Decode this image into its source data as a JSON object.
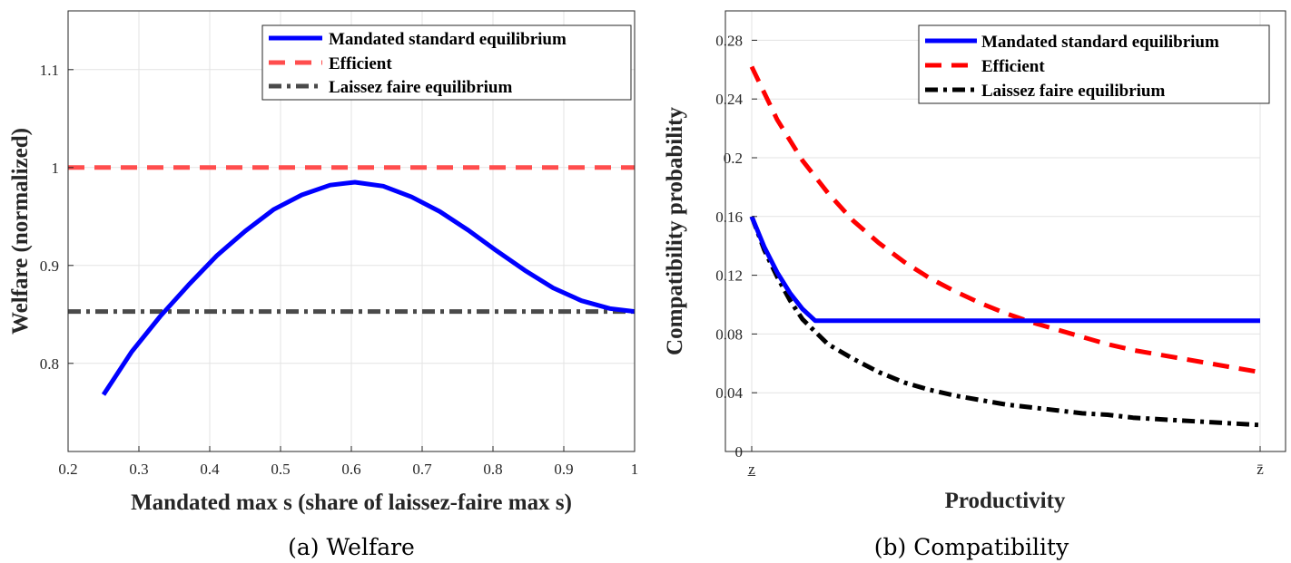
{
  "chart_data": [
    {
      "type": "line",
      "title": "",
      "caption": "(a) Welfare",
      "xlabel": "Mandated max s (share of laissez-faire max s)",
      "ylabel": "Welfare (normalized)",
      "xlim": [
        0.2,
        1.0
      ],
      "ylim": [
        0.71,
        1.16
      ],
      "xticks": [
        0.2,
        0.3,
        0.4,
        0.5,
        0.6,
        0.7,
        0.8,
        0.9,
        1.0
      ],
      "xtick_labels": [
        "0.2",
        "0.3",
        "0.4",
        "0.5",
        "0.6",
        "0.7",
        "0.8",
        "0.9",
        "1"
      ],
      "yticks": [
        0.8,
        0.9,
        1.0,
        1.1
      ],
      "ytick_labels": [
        "0.8",
        "0.9",
        "1",
        "1.1"
      ],
      "grid": true,
      "legend_position": "top-right",
      "series": [
        {
          "name": "Mandated standard equilibrium",
          "color": "#0000ff",
          "style": "solid",
          "x": [
            0.25,
            0.29,
            0.33,
            0.37,
            0.41,
            0.45,
            0.49,
            0.53,
            0.57,
            0.605,
            0.645,
            0.685,
            0.725,
            0.765,
            0.805,
            0.845,
            0.885,
            0.925,
            0.965,
            1.0
          ],
          "y": [
            0.768,
            0.812,
            0.848,
            0.88,
            0.91,
            0.935,
            0.957,
            0.972,
            0.982,
            0.985,
            0.981,
            0.97,
            0.955,
            0.936,
            0.915,
            0.895,
            0.877,
            0.864,
            0.856,
            0.853
          ]
        },
        {
          "name": "Efficient",
          "color": "#ff4d4d",
          "style": "dashed",
          "x": [
            0.2,
            1.0
          ],
          "y": [
            1.0,
            1.0
          ]
        },
        {
          "name": "Laissez faire equilibrium",
          "color": "#4a4a4a",
          "style": "dashdot",
          "x": [
            0.2,
            1.0
          ],
          "y": [
            0.853,
            0.853
          ]
        }
      ]
    },
    {
      "type": "line",
      "title": "",
      "caption": "(b) Compatibility",
      "xlabel": "Productivity",
      "ylabel": "Compatibility probability",
      "xlim": [
        0.0,
        1.0
      ],
      "ylim": [
        0,
        0.3
      ],
      "x_domain_note": "x normalized from z-underbar (0) to z-bar (1)",
      "xticks": [
        0.0,
        1.0
      ],
      "xtick_labels": [
        "z̲",
        "z̄"
      ],
      "yticks": [
        0,
        0.04,
        0.08,
        0.12,
        0.16,
        0.2,
        0.24,
        0.28
      ],
      "ytick_labels": [
        "0",
        "0.04",
        "0.08",
        "0.12",
        "0.16",
        "0.2",
        "0.24",
        "0.28"
      ],
      "grid": true,
      "legend_position": "top-right",
      "series": [
        {
          "name": "Mandated standard equilibrium",
          "color": "#0000ff",
          "style": "solid",
          "x": [
            0.0,
            0.025,
            0.05,
            0.075,
            0.1,
            0.125,
            1.0
          ],
          "y": [
            0.16,
            0.139,
            0.122,
            0.108,
            0.097,
            0.089,
            0.089
          ]
        },
        {
          "name": "Efficient",
          "color": "#ff0000",
          "style": "dashed",
          "x": [
            0.0,
            0.05,
            0.1,
            0.15,
            0.2,
            0.25,
            0.3,
            0.35,
            0.4,
            0.45,
            0.5,
            0.55,
            0.6,
            0.65,
            0.7,
            0.75,
            0.8,
            0.85,
            0.9,
            0.95,
            1.0
          ],
          "y": [
            0.262,
            0.226,
            0.198,
            0.176,
            0.157,
            0.142,
            0.129,
            0.118,
            0.109,
            0.101,
            0.094,
            0.088,
            0.083,
            0.078,
            0.073,
            0.069,
            0.066,
            0.063,
            0.06,
            0.057,
            0.054
          ]
        },
        {
          "name": "Laissez faire equilibrium",
          "color": "#000000",
          "style": "dashdot",
          "x": [
            0.0,
            0.025,
            0.05,
            0.075,
            0.1,
            0.15,
            0.2,
            0.25,
            0.3,
            0.35,
            0.4,
            0.45,
            0.5,
            0.55,
            0.6,
            0.65,
            0.7,
            0.75,
            0.8,
            0.85,
            0.9,
            0.95,
            1.0
          ],
          "y": [
            0.16,
            0.137,
            0.119,
            0.103,
            0.09,
            0.073,
            0.063,
            0.054,
            0.047,
            0.042,
            0.038,
            0.035,
            0.032,
            0.03,
            0.028,
            0.026,
            0.025,
            0.023,
            0.022,
            0.021,
            0.02,
            0.019,
            0.018
          ]
        }
      ]
    }
  ]
}
